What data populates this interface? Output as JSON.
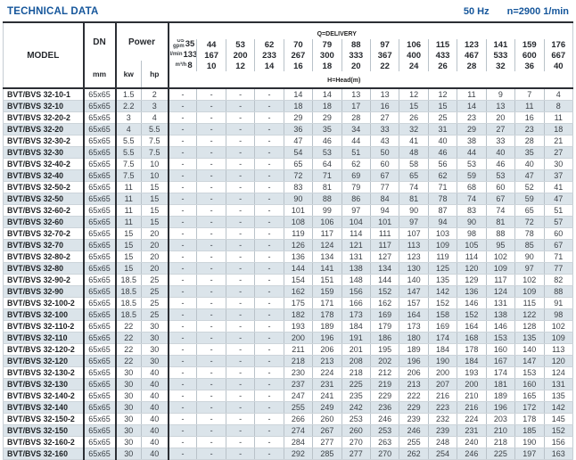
{
  "page": {
    "title": "TECHNICAL DATA",
    "frequency": "50 Hz",
    "speed": "n=2900 1/min"
  },
  "table": {
    "header": {
      "model_label": "MODEL",
      "dn_label": "DN",
      "dn_unit": "mm",
      "power_label": "Power",
      "kw_label": "kw",
      "hp_label": "hp",
      "delivery_label": "Q=DELIVERY",
      "head_label": "H=Head(m)",
      "unit_rows": [
        {
          "unit": "US gpm",
          "values": [
            "35",
            "44",
            "53",
            "62",
            "70",
            "79",
            "88",
            "97",
            "106",
            "115",
            "123",
            "141",
            "159",
            "176"
          ]
        },
        {
          "unit": "l/min",
          "values": [
            "133",
            "167",
            "200",
            "233",
            "267",
            "300",
            "333",
            "367",
            "400",
            "433",
            "467",
            "533",
            "600",
            "667"
          ]
        },
        {
          "unit": "m³/h",
          "values": [
            "8",
            "10",
            "12",
            "14",
            "16",
            "18",
            "20",
            "22",
            "24",
            "26",
            "28",
            "32",
            "36",
            "40"
          ]
        }
      ]
    },
    "rows": [
      {
        "model": "BVT/BVS 32-10-1",
        "dn": "65x65",
        "kw": "1.5",
        "hp": "2",
        "values": [
          "-",
          "-",
          "-",
          "-",
          "14",
          "14",
          "13",
          "13",
          "12",
          "12",
          "11",
          "9",
          "7",
          "4"
        ]
      },
      {
        "model": "BVT/BVS 32-10",
        "dn": "65x65",
        "kw": "2.2",
        "hp": "3",
        "values": [
          "-",
          "-",
          "-",
          "-",
          "18",
          "18",
          "17",
          "16",
          "15",
          "15",
          "14",
          "13",
          "11",
          "8"
        ]
      },
      {
        "model": "BVT/BVS 32-20-2",
        "dn": "65x65",
        "kw": "3",
        "hp": "4",
        "values": [
          "-",
          "-",
          "-",
          "-",
          "29",
          "29",
          "28",
          "27",
          "26",
          "25",
          "23",
          "20",
          "16",
          "11"
        ]
      },
      {
        "model": "BVT/BVS 32-20",
        "dn": "65x65",
        "kw": "4",
        "hp": "5.5",
        "values": [
          "-",
          "-",
          "-",
          "-",
          "36",
          "35",
          "34",
          "33",
          "32",
          "31",
          "29",
          "27",
          "23",
          "18"
        ]
      },
      {
        "model": "BVT/BVS 32-30-2",
        "dn": "65x65",
        "kw": "5.5",
        "hp": "7.5",
        "values": [
          "-",
          "-",
          "-",
          "-",
          "47",
          "46",
          "44",
          "43",
          "41",
          "40",
          "38",
          "33",
          "28",
          "21"
        ]
      },
      {
        "model": "BVT/BVS 32-30",
        "dn": "65x65",
        "kw": "5.5",
        "hp": "7.5",
        "values": [
          "-",
          "-",
          "-",
          "-",
          "54",
          "53",
          "51",
          "50",
          "48",
          "46",
          "44",
          "40",
          "35",
          "27"
        ]
      },
      {
        "model": "BVT/BVS 32-40-2",
        "dn": "65x65",
        "kw": "7.5",
        "hp": "10",
        "values": [
          "-",
          "-",
          "-",
          "-",
          "65",
          "64",
          "62",
          "60",
          "58",
          "56",
          "53",
          "46",
          "40",
          "30"
        ]
      },
      {
        "model": "BVT/BVS 32-40",
        "dn": "65x65",
        "kw": "7.5",
        "hp": "10",
        "values": [
          "-",
          "-",
          "-",
          "-",
          "72",
          "71",
          "69",
          "67",
          "65",
          "62",
          "59",
          "53",
          "47",
          "37"
        ]
      },
      {
        "model": "BVT/BVS 32-50-2",
        "dn": "65x65",
        "kw": "11",
        "hp": "15",
        "values": [
          "-",
          "-",
          "-",
          "-",
          "83",
          "81",
          "79",
          "77",
          "74",
          "71",
          "68",
          "60",
          "52",
          "41"
        ]
      },
      {
        "model": "BVT/BVS 32-50",
        "dn": "65x65",
        "kw": "11",
        "hp": "15",
        "values": [
          "-",
          "-",
          "-",
          "-",
          "90",
          "88",
          "86",
          "84",
          "81",
          "78",
          "74",
          "67",
          "59",
          "47"
        ]
      },
      {
        "model": "BVT/BVS 32-60-2",
        "dn": "65x65",
        "kw": "11",
        "hp": "15",
        "values": [
          "-",
          "-",
          "-",
          "-",
          "101",
          "99",
          "97",
          "94",
          "90",
          "87",
          "83",
          "74",
          "65",
          "51"
        ]
      },
      {
        "model": "BVT/BVS 32-60",
        "dn": "65x65",
        "kw": "11",
        "hp": "15",
        "values": [
          "-",
          "-",
          "-",
          "-",
          "108",
          "106",
          "104",
          "101",
          "97",
          "94",
          "90",
          "81",
          "72",
          "57"
        ]
      },
      {
        "model": "BVT/BVS 32-70-2",
        "dn": "65x65",
        "kw": "15",
        "hp": "20",
        "values": [
          "-",
          "-",
          "-",
          "-",
          "119",
          "117",
          "114",
          "111",
          "107",
          "103",
          "98",
          "88",
          "78",
          "60"
        ]
      },
      {
        "model": "BVT/BVS 32-70",
        "dn": "65x65",
        "kw": "15",
        "hp": "20",
        "values": [
          "-",
          "-",
          "-",
          "-",
          "126",
          "124",
          "121",
          "117",
          "113",
          "109",
          "105",
          "95",
          "85",
          "67"
        ]
      },
      {
        "model": "BVT/BVS 32-80-2",
        "dn": "65x65",
        "kw": "15",
        "hp": "20",
        "values": [
          "-",
          "-",
          "-",
          "-",
          "136",
          "134",
          "131",
          "127",
          "123",
          "119",
          "114",
          "102",
          "90",
          "71"
        ]
      },
      {
        "model": "BVT/BVS 32-80",
        "dn": "65x65",
        "kw": "15",
        "hp": "20",
        "values": [
          "-",
          "-",
          "-",
          "-",
          "144",
          "141",
          "138",
          "134",
          "130",
          "125",
          "120",
          "109",
          "97",
          "77"
        ]
      },
      {
        "model": "BVT/BVS 32-90-2",
        "dn": "65x65",
        "kw": "18.5",
        "hp": "25",
        "values": [
          "-",
          "-",
          "-",
          "-",
          "154",
          "151",
          "148",
          "144",
          "140",
          "135",
          "129",
          "117",
          "102",
          "82"
        ]
      },
      {
        "model": "BVT/BVS 32-90",
        "dn": "65x65",
        "kw": "18.5",
        "hp": "25",
        "values": [
          "-",
          "-",
          "-",
          "-",
          "162",
          "159",
          "156",
          "152",
          "147",
          "142",
          "136",
          "124",
          "109",
          "88"
        ]
      },
      {
        "model": "BVT/BVS 32-100-2",
        "dn": "65x65",
        "kw": "18.5",
        "hp": "25",
        "values": [
          "-",
          "-",
          "-",
          "-",
          "175",
          "171",
          "166",
          "162",
          "157",
          "152",
          "146",
          "131",
          "115",
          "91"
        ]
      },
      {
        "model": "BVT/BVS 32-100",
        "dn": "65x65",
        "kw": "18.5",
        "hp": "25",
        "values": [
          "-",
          "-",
          "-",
          "-",
          "182",
          "178",
          "173",
          "169",
          "164",
          "158",
          "152",
          "138",
          "122",
          "98"
        ]
      },
      {
        "model": "BVT/BVS 32-110-2",
        "dn": "65x65",
        "kw": "22",
        "hp": "30",
        "values": [
          "-",
          "-",
          "-",
          "-",
          "193",
          "189",
          "184",
          "179",
          "173",
          "169",
          "164",
          "146",
          "128",
          "102"
        ]
      },
      {
        "model": "BVT/BVS 32-110",
        "dn": "65x65",
        "kw": "22",
        "hp": "30",
        "values": [
          "-",
          "-",
          "-",
          "-",
          "200",
          "196",
          "191",
          "186",
          "180",
          "174",
          "168",
          "153",
          "135",
          "109"
        ]
      },
      {
        "model": "BVT/BVS 32-120-2",
        "dn": "65x65",
        "kw": "22",
        "hp": "30",
        "values": [
          "-",
          "-",
          "-",
          "-",
          "211",
          "206",
          "201",
          "195",
          "189",
          "184",
          "178",
          "160",
          "140",
          "113"
        ]
      },
      {
        "model": "BVT/BVS 32-120",
        "dn": "65x65",
        "kw": "22",
        "hp": "30",
        "values": [
          "-",
          "-",
          "-",
          "-",
          "218",
          "213",
          "208",
          "202",
          "196",
          "190",
          "184",
          "167",
          "147",
          "120"
        ]
      },
      {
        "model": "BVT/BVS 32-130-2",
        "dn": "65x65",
        "kw": "30",
        "hp": "40",
        "values": [
          "-",
          "-",
          "-",
          "-",
          "230",
          "224",
          "218",
          "212",
          "206",
          "200",
          "193",
          "174",
          "153",
          "124"
        ]
      },
      {
        "model": "BVT/BVS 32-130",
        "dn": "65x65",
        "kw": "30",
        "hp": "40",
        "values": [
          "-",
          "-",
          "-",
          "-",
          "237",
          "231",
          "225",
          "219",
          "213",
          "207",
          "200",
          "181",
          "160",
          "131"
        ]
      },
      {
        "model": "BVT/BVS 32-140-2",
        "dn": "65x65",
        "kw": "30",
        "hp": "40",
        "values": [
          "-",
          "-",
          "-",
          "-",
          "247",
          "241",
          "235",
          "229",
          "222",
          "216",
          "210",
          "189",
          "165",
          "135"
        ]
      },
      {
        "model": "BVT/BVS 32-140",
        "dn": "65x65",
        "kw": "30",
        "hp": "40",
        "values": [
          "-",
          "-",
          "-",
          "-",
          "255",
          "249",
          "242",
          "236",
          "229",
          "223",
          "216",
          "196",
          "172",
          "142"
        ]
      },
      {
        "model": "BVT/BVS 32-150-2",
        "dn": "65x65",
        "kw": "30",
        "hp": "40",
        "values": [
          "-",
          "-",
          "-",
          "-",
          "266",
          "260",
          "253",
          "246",
          "239",
          "232",
          "224",
          "203",
          "178",
          "145"
        ]
      },
      {
        "model": "BVT/BVS 32-150",
        "dn": "65x65",
        "kw": "30",
        "hp": "40",
        "values": [
          "-",
          "-",
          "-",
          "-",
          "274",
          "267",
          "260",
          "253",
          "246",
          "239",
          "231",
          "210",
          "185",
          "152"
        ]
      },
      {
        "model": "BVT/BVS 32-160-2",
        "dn": "65x65",
        "kw": "30",
        "hp": "40",
        "values": [
          "-",
          "-",
          "-",
          "-",
          "284",
          "277",
          "270",
          "263",
          "255",
          "248",
          "240",
          "218",
          "190",
          "156"
        ]
      },
      {
        "model": "BVT/BVS 32-160",
        "dn": "65x65",
        "kw": "30",
        "hp": "40",
        "values": [
          "-",
          "-",
          "-",
          "-",
          "292",
          "285",
          "277",
          "270",
          "262",
          "254",
          "246",
          "225",
          "197",
          "163"
        ]
      }
    ]
  },
  "colors": {
    "accent_blue": "#15569b",
    "stripe": "#dbe4ea",
    "border_dark": "#2b2e34"
  }
}
